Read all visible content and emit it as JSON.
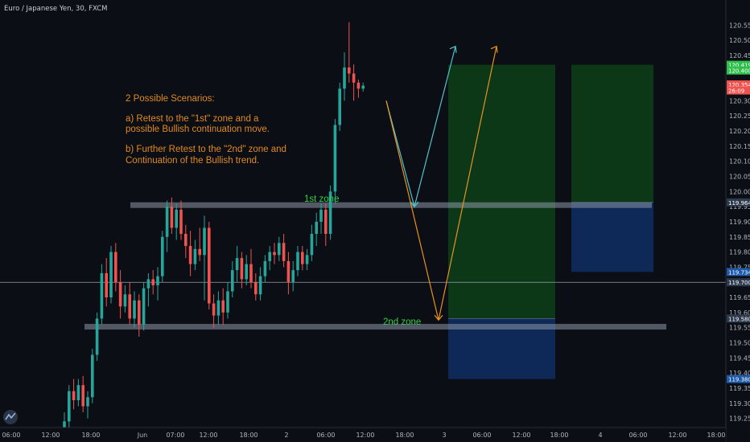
{
  "header": {
    "title": "Euro / Japanese Yen, 30, FXCM"
  },
  "annotations": {
    "lines": [
      "2 Possible Scenarios:",
      "",
      "a)  Retest to the \"1st\" zone and a",
      "      possible Bullish continuation move.",
      "",
      "b)  Further Retest to the \"2nd\" zone and",
      "      Continuation of the Bullish trend."
    ],
    "zone1_label": "1st zone",
    "zone2_label": "2nd zone"
  },
  "colors": {
    "background": "#0c0e15",
    "up": "#26a69a",
    "down": "#ef5350",
    "annotation": "#e08a1e",
    "zone_label": "#2fd24a",
    "path_a": "#4fc3d0",
    "path_b": "#e8921e",
    "profit_zone": "#0e3b17",
    "stop_zone": "#0f2a5c"
  },
  "chart_data": {
    "type": "candlestick",
    "title": "Euro / Japanese Yen, 30, FXCM",
    "ylim": [
      119.225,
      120.58
    ],
    "y_ticks": [
      "120.550",
      "120.500",
      "120.450",
      "120.400",
      "120.350",
      "120.300",
      "120.250",
      "120.200",
      "120.150",
      "120.100",
      "120.050",
      "120.000",
      "119.950",
      "119.900",
      "119.850",
      "119.800",
      "119.750",
      "119.700",
      "119.650",
      "119.600",
      "119.550",
      "119.500",
      "119.450",
      "119.400",
      "119.350",
      "119.300",
      "119.250"
    ],
    "x_ticks": [
      "06:00",
      "12:00",
      "18:00",
      "Jun",
      "07:00",
      "12:00",
      "18:00",
      "2",
      "06:00",
      "12:00",
      "18:00",
      "3",
      "06:00",
      "12:00",
      "18:00",
      "4",
      "06:00",
      "12:00",
      "18:00"
    ],
    "price_tags": [
      {
        "label": "120.419",
        "value": 120.419,
        "color": "#2fbf4a"
      },
      {
        "label": "120.400",
        "value": 120.4,
        "color": "#2fbf4a"
      },
      {
        "label": "120.354",
        "value": 120.354,
        "color": "#ef5350"
      },
      {
        "label": "26:09",
        "value": 120.334,
        "color": "#ef5350"
      },
      {
        "label": "119.964",
        "value": 119.964,
        "color": "#2e3a4e"
      },
      {
        "label": "119.734",
        "value": 119.734,
        "color": "#1e5aa8"
      },
      {
        "label": "119.700",
        "value": 119.7,
        "color": "#2e3a4e"
      },
      {
        "label": "119.580",
        "value": 119.58,
        "color": "#2e3a4e"
      },
      {
        "label": "119.380",
        "value": 119.38,
        "color": "#1e5aa8"
      }
    ],
    "horizontal_line": 119.7,
    "zones": [
      {
        "name": "1st zone",
        "value": 119.955
      },
      {
        "name": "2nd zone",
        "value": 119.553
      }
    ],
    "positions": [
      {
        "entry": 119.58,
        "target": 120.419,
        "stop": 119.38
      },
      {
        "entry": 119.964,
        "target": 120.419,
        "stop": 119.734
      }
    ],
    "scenario_paths": [
      {
        "name": "a",
        "points": [
          [
            120.3
          ],
          [
            119.95
          ],
          [
            120.48
          ]
        ]
      },
      {
        "name": "b",
        "points": [
          [
            120.3
          ],
          [
            119.575
          ],
          [
            120.48
          ]
        ]
      }
    ],
    "candles": [
      [
        119.2,
        119.27,
        119.18,
        119.24
      ],
      [
        119.24,
        119.36,
        119.22,
        119.34
      ],
      [
        119.34,
        119.38,
        119.28,
        119.31
      ],
      [
        119.31,
        119.38,
        119.29,
        119.36
      ],
      [
        119.36,
        119.39,
        119.27,
        119.29
      ],
      [
        119.29,
        119.34,
        119.25,
        119.32
      ],
      [
        119.32,
        119.48,
        119.3,
        119.46
      ],
      [
        119.46,
        119.6,
        119.44,
        119.58
      ],
      [
        119.58,
        119.76,
        119.56,
        119.73
      ],
      [
        119.73,
        119.78,
        119.62,
        119.65
      ],
      [
        119.65,
        119.82,
        119.63,
        119.8
      ],
      [
        119.8,
        119.83,
        119.67,
        119.7
      ],
      [
        119.7,
        119.74,
        119.58,
        119.62
      ],
      [
        119.62,
        119.69,
        119.6,
        119.66
      ],
      [
        119.66,
        119.7,
        119.56,
        119.58
      ],
      [
        119.58,
        119.67,
        119.55,
        119.64
      ],
      [
        119.64,
        119.66,
        119.52,
        119.56
      ],
      [
        119.56,
        119.7,
        119.54,
        119.68
      ],
      [
        119.68,
        119.73,
        119.62,
        119.71
      ],
      [
        119.71,
        119.74,
        119.66,
        119.69
      ],
      [
        119.69,
        119.75,
        119.64,
        119.72
      ],
      [
        119.72,
        119.87,
        119.7,
        119.85
      ],
      [
        119.85,
        119.97,
        119.8,
        119.95
      ],
      [
        119.95,
        119.98,
        119.86,
        119.88
      ],
      [
        119.88,
        119.96,
        119.84,
        119.94
      ],
      [
        119.94,
        119.97,
        119.84,
        119.86
      ],
      [
        119.86,
        119.89,
        119.78,
        119.82
      ],
      [
        119.82,
        119.87,
        119.72,
        119.76
      ],
      [
        119.76,
        119.84,
        119.74,
        119.81
      ],
      [
        119.81,
        119.88,
        119.77,
        119.79
      ],
      [
        119.79,
        119.92,
        119.64,
        119.88
      ],
      [
        119.88,
        119.9,
        119.61,
        119.63
      ],
      [
        119.63,
        119.66,
        119.55,
        119.59
      ],
      [
        119.59,
        119.67,
        119.56,
        119.64
      ],
      [
        119.64,
        119.68,
        119.56,
        119.6
      ],
      [
        119.6,
        119.7,
        119.58,
        119.67
      ],
      [
        119.67,
        119.77,
        119.65,
        119.74
      ],
      [
        119.74,
        119.82,
        119.7,
        119.78
      ],
      [
        119.78,
        119.8,
        119.68,
        119.71
      ],
      [
        119.71,
        119.79,
        119.69,
        119.76
      ],
      [
        119.76,
        119.81,
        119.68,
        119.7
      ],
      [
        119.7,
        119.73,
        119.64,
        119.66
      ],
      [
        119.66,
        119.75,
        119.64,
        119.72
      ],
      [
        119.72,
        119.79,
        119.7,
        119.77
      ],
      [
        119.77,
        119.82,
        119.74,
        119.8
      ],
      [
        119.8,
        119.83,
        119.76,
        119.79
      ],
      [
        119.79,
        119.85,
        119.77,
        119.83
      ],
      [
        119.83,
        119.86,
        119.75,
        119.77
      ],
      [
        119.77,
        119.8,
        119.66,
        119.7
      ],
      [
        119.7,
        119.77,
        119.67,
        119.74
      ],
      [
        119.74,
        119.82,
        119.72,
        119.8
      ],
      [
        119.8,
        119.82,
        119.74,
        119.76
      ],
      [
        119.76,
        119.81,
        119.74,
        119.79
      ],
      [
        119.79,
        119.89,
        119.77,
        119.86
      ],
      [
        119.86,
        119.93,
        119.82,
        119.9
      ],
      [
        119.9,
        119.96,
        119.86,
        119.94
      ],
      [
        119.94,
        119.96,
        119.82,
        119.86
      ],
      [
        119.86,
        120.02,
        119.84,
        120.0
      ],
      [
        120.0,
        120.24,
        119.96,
        120.22
      ],
      [
        120.22,
        120.36,
        120.2,
        120.34
      ],
      [
        120.34,
        120.46,
        120.3,
        120.41
      ],
      [
        120.41,
        120.56,
        120.36,
        120.39
      ],
      [
        120.39,
        120.42,
        120.3,
        120.36
      ],
      [
        120.36,
        120.37,
        120.31,
        120.34
      ],
      [
        120.34,
        120.36,
        120.33,
        120.35
      ]
    ]
  }
}
